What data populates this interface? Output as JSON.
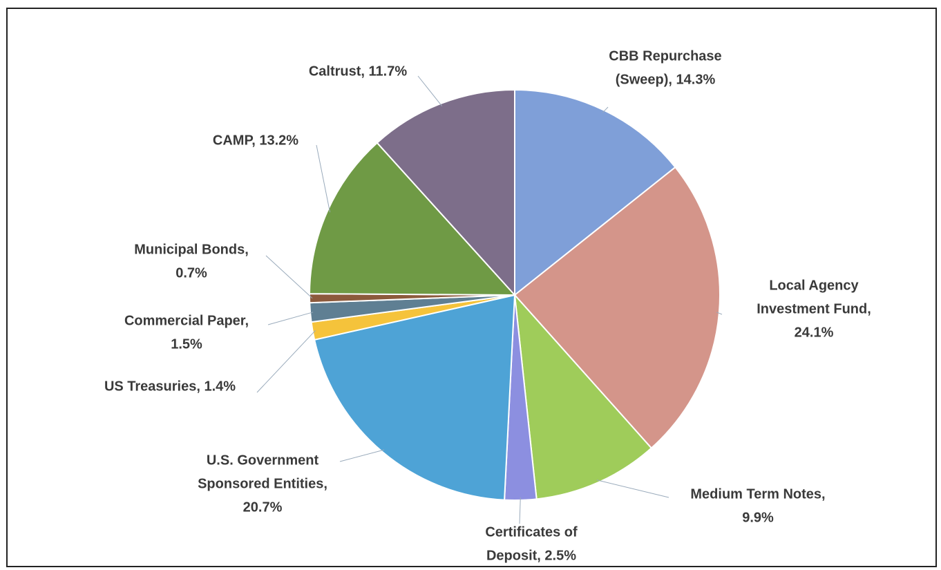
{
  "chart_data": {
    "type": "pie",
    "values": [
      14.3,
      24.1,
      9.9,
      2.5,
      20.7,
      1.4,
      1.5,
      0.7,
      13.2,
      11.7
    ],
    "value_labels": [
      [
        "CBB Repurchase",
        "(Sweep), 14.3%"
      ],
      [
        "Local Agency",
        "Investment Fund,",
        "24.1%"
      ],
      [
        "Medium Term Notes,",
        "9.9%"
      ],
      [
        "Certificates of",
        "Deposit, 2.5%"
      ],
      [
        "U.S. Government",
        "Sponsored Entities,",
        "20.7%"
      ],
      [
        "US Treasuries, 1.4%"
      ],
      [
        "Commercial Paper,",
        "1.5%"
      ],
      [
        "Municipal Bonds,",
        "0.7%"
      ],
      [
        "CAMP, 13.2%"
      ],
      [
        "Caltrust, 11.7%"
      ]
    ],
    "colors": [
      "#7f9fd8",
      "#d4958a",
      "#9fcc5a",
      "#8c8fe0",
      "#4ea3d6",
      "#f5c33b",
      "#5f7f93",
      "#8c5a3c",
      "#6f9a45",
      "#7d6e8a"
    ]
  }
}
